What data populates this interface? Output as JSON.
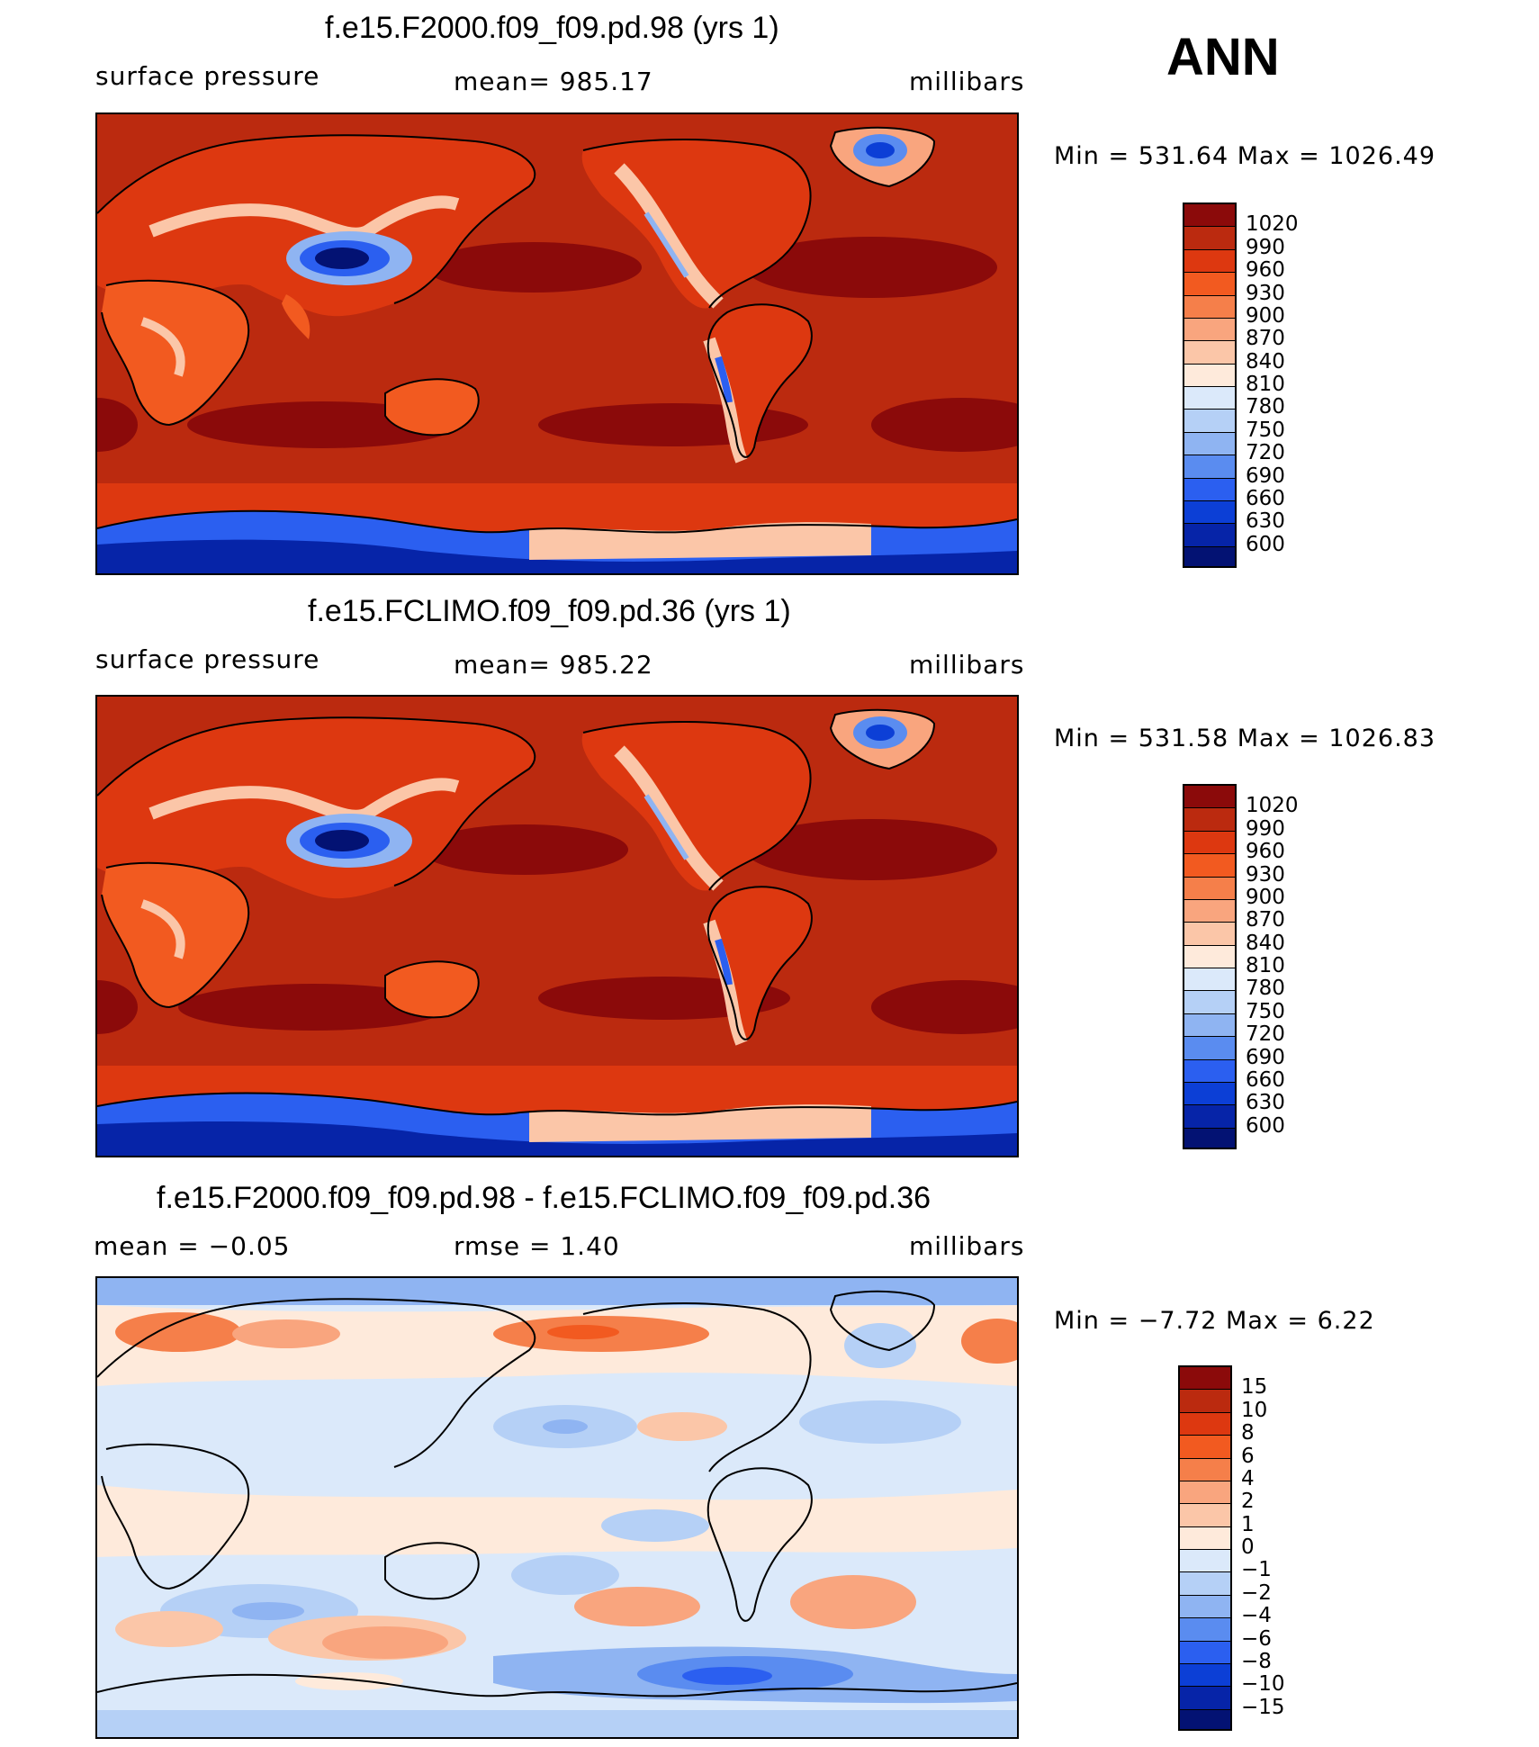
{
  "season": "ANN",
  "panels": [
    {
      "title": "f.e15.F2000.f09_f09.pd.98 (yrs 1)",
      "left_label": "surface pressure",
      "center_label": "mean= 985.17",
      "units": "millibars",
      "minmax": "Min  =  531.64  Max  =  1026.49",
      "colorbar_labels": [
        "1020",
        "990",
        "960",
        "930",
        "900",
        "870",
        "840",
        "810",
        "780",
        "750",
        "720",
        "690",
        "660",
        "630",
        "600"
      ]
    },
    {
      "title": "f.e15.FCLIMO.f09_f09.pd.36 (yrs 1)",
      "left_label": "surface pressure",
      "center_label": "mean= 985.22",
      "units": "millibars",
      "minmax": "Min  =  531.58  Max  =  1026.83",
      "colorbar_labels": [
        "1020",
        "990",
        "960",
        "930",
        "900",
        "870",
        "840",
        "810",
        "780",
        "750",
        "720",
        "690",
        "660",
        "630",
        "600"
      ]
    },
    {
      "title": "f.e15.F2000.f09_f09.pd.98 - f.e15.FCLIMO.f09_f09.pd.36",
      "left_label": "mean  =    −0.05",
      "center_label": "rmse  =     1.40",
      "units": "millibars",
      "minmax": "Min  =   −7.72  Max  =     6.22",
      "colorbar_labels": [
        "15",
        "10",
        "8",
        "6",
        "4",
        "2",
        "1",
        "0",
        "−1",
        "−2",
        "−4",
        "−6",
        "−8",
        "−10",
        "−15"
      ]
    }
  ],
  "colors": {
    "abs_scale": [
      "#8b0a0a",
      "#bb2a0f",
      "#dd3810",
      "#f25a20",
      "#f57f4a",
      "#f9a57e",
      "#fbc6a8",
      "#feeadb",
      "#dbe9fa",
      "#b5d0f6",
      "#8fb4f2",
      "#5a8cf0",
      "#2b5ff0",
      "#0c3fd6",
      "#0624a8",
      "#031273"
    ],
    "diff_scale": [
      "#8b0a0a",
      "#bb2a0f",
      "#dd3810",
      "#f25a20",
      "#f57f4a",
      "#f9a57e",
      "#fbc6a8",
      "#feeadb",
      "#dbe9fa",
      "#b5d0f6",
      "#8fb4f2",
      "#5a8cf0",
      "#2b5ff0",
      "#0c3fd6",
      "#0624a8",
      "#031273"
    ]
  }
}
